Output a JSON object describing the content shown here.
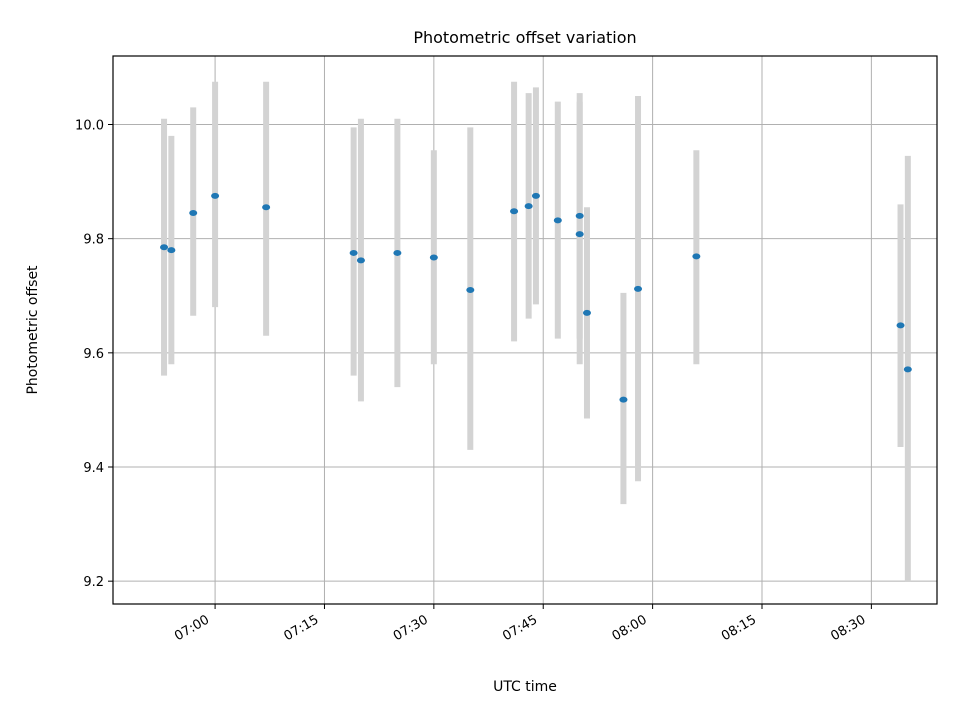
{
  "chart_data": {
    "type": "scatter",
    "title": "Photometric offset variation",
    "xlabel": "UTC time",
    "ylabel": "Photometric offset",
    "x_ticks": [
      "07:00",
      "07:15",
      "07:30",
      "07:45",
      "08:00",
      "08:15",
      "08:30"
    ],
    "y_ticks": [
      "9.2",
      "9.4",
      "9.6",
      "9.8",
      "10.0"
    ],
    "xlim": [
      "06:46",
      "08:39"
    ],
    "ylim": [
      9.16,
      10.12
    ],
    "grid": true,
    "points": [
      {
        "x": "06:53",
        "y": 9.785,
        "err_low": 9.56,
        "err_high": 10.01
      },
      {
        "x": "06:54",
        "y": 9.78,
        "err_low": 9.58,
        "err_high": 9.98
      },
      {
        "x": "06:57",
        "y": 9.845,
        "err_low": 9.665,
        "err_high": 10.03
      },
      {
        "x": "07:00",
        "y": 9.875,
        "err_low": 9.68,
        "err_high": 10.075
      },
      {
        "x": "07:07",
        "y": 9.855,
        "err_low": 9.63,
        "err_high": 10.075
      },
      {
        "x": "07:19",
        "y": 9.775,
        "err_low": 9.56,
        "err_high": 9.995
      },
      {
        "x": "07:20",
        "y": 9.762,
        "err_low": 9.515,
        "err_high": 10.01
      },
      {
        "x": "07:25",
        "y": 9.775,
        "err_low": 9.54,
        "err_high": 10.01
      },
      {
        "x": "07:30",
        "y": 9.767,
        "err_low": 9.58,
        "err_high": 9.955
      },
      {
        "x": "07:35",
        "y": 9.71,
        "err_low": 9.43,
        "err_high": 9.995
      },
      {
        "x": "07:41",
        "y": 9.848,
        "err_low": 9.62,
        "err_high": 10.075
      },
      {
        "x": "07:43",
        "y": 9.857,
        "err_low": 9.66,
        "err_high": 10.055
      },
      {
        "x": "07:44",
        "y": 9.875,
        "err_low": 9.685,
        "err_high": 10.065
      },
      {
        "x": "07:47",
        "y": 9.832,
        "err_low": 9.625,
        "err_high": 10.04
      },
      {
        "x": "07:50",
        "y": 9.84,
        "err_low": 9.625,
        "err_high": 10.055
      },
      {
        "x": "07:50",
        "y": 9.808,
        "err_low": 9.58,
        "err_high": 10.04
      },
      {
        "x": "07:51",
        "y": 9.67,
        "err_low": 9.485,
        "err_high": 9.855
      },
      {
        "x": "07:56",
        "y": 9.518,
        "err_low": 9.335,
        "err_high": 9.705
      },
      {
        "x": "07:58",
        "y": 9.712,
        "err_low": 9.375,
        "err_high": 10.05
      },
      {
        "x": "08:06",
        "y": 9.769,
        "err_low": 9.58,
        "err_high": 9.955
      },
      {
        "x": "08:34",
        "y": 9.648,
        "err_low": 9.435,
        "err_high": 9.86
      },
      {
        "x": "08:35",
        "y": 9.571,
        "err_low": 9.2,
        "err_high": 9.945
      }
    ],
    "colors": {
      "marker": "#1f77b4",
      "errorbar": "#d3d3d3",
      "grid": "#b0b0b0",
      "axis": "#000000"
    }
  }
}
